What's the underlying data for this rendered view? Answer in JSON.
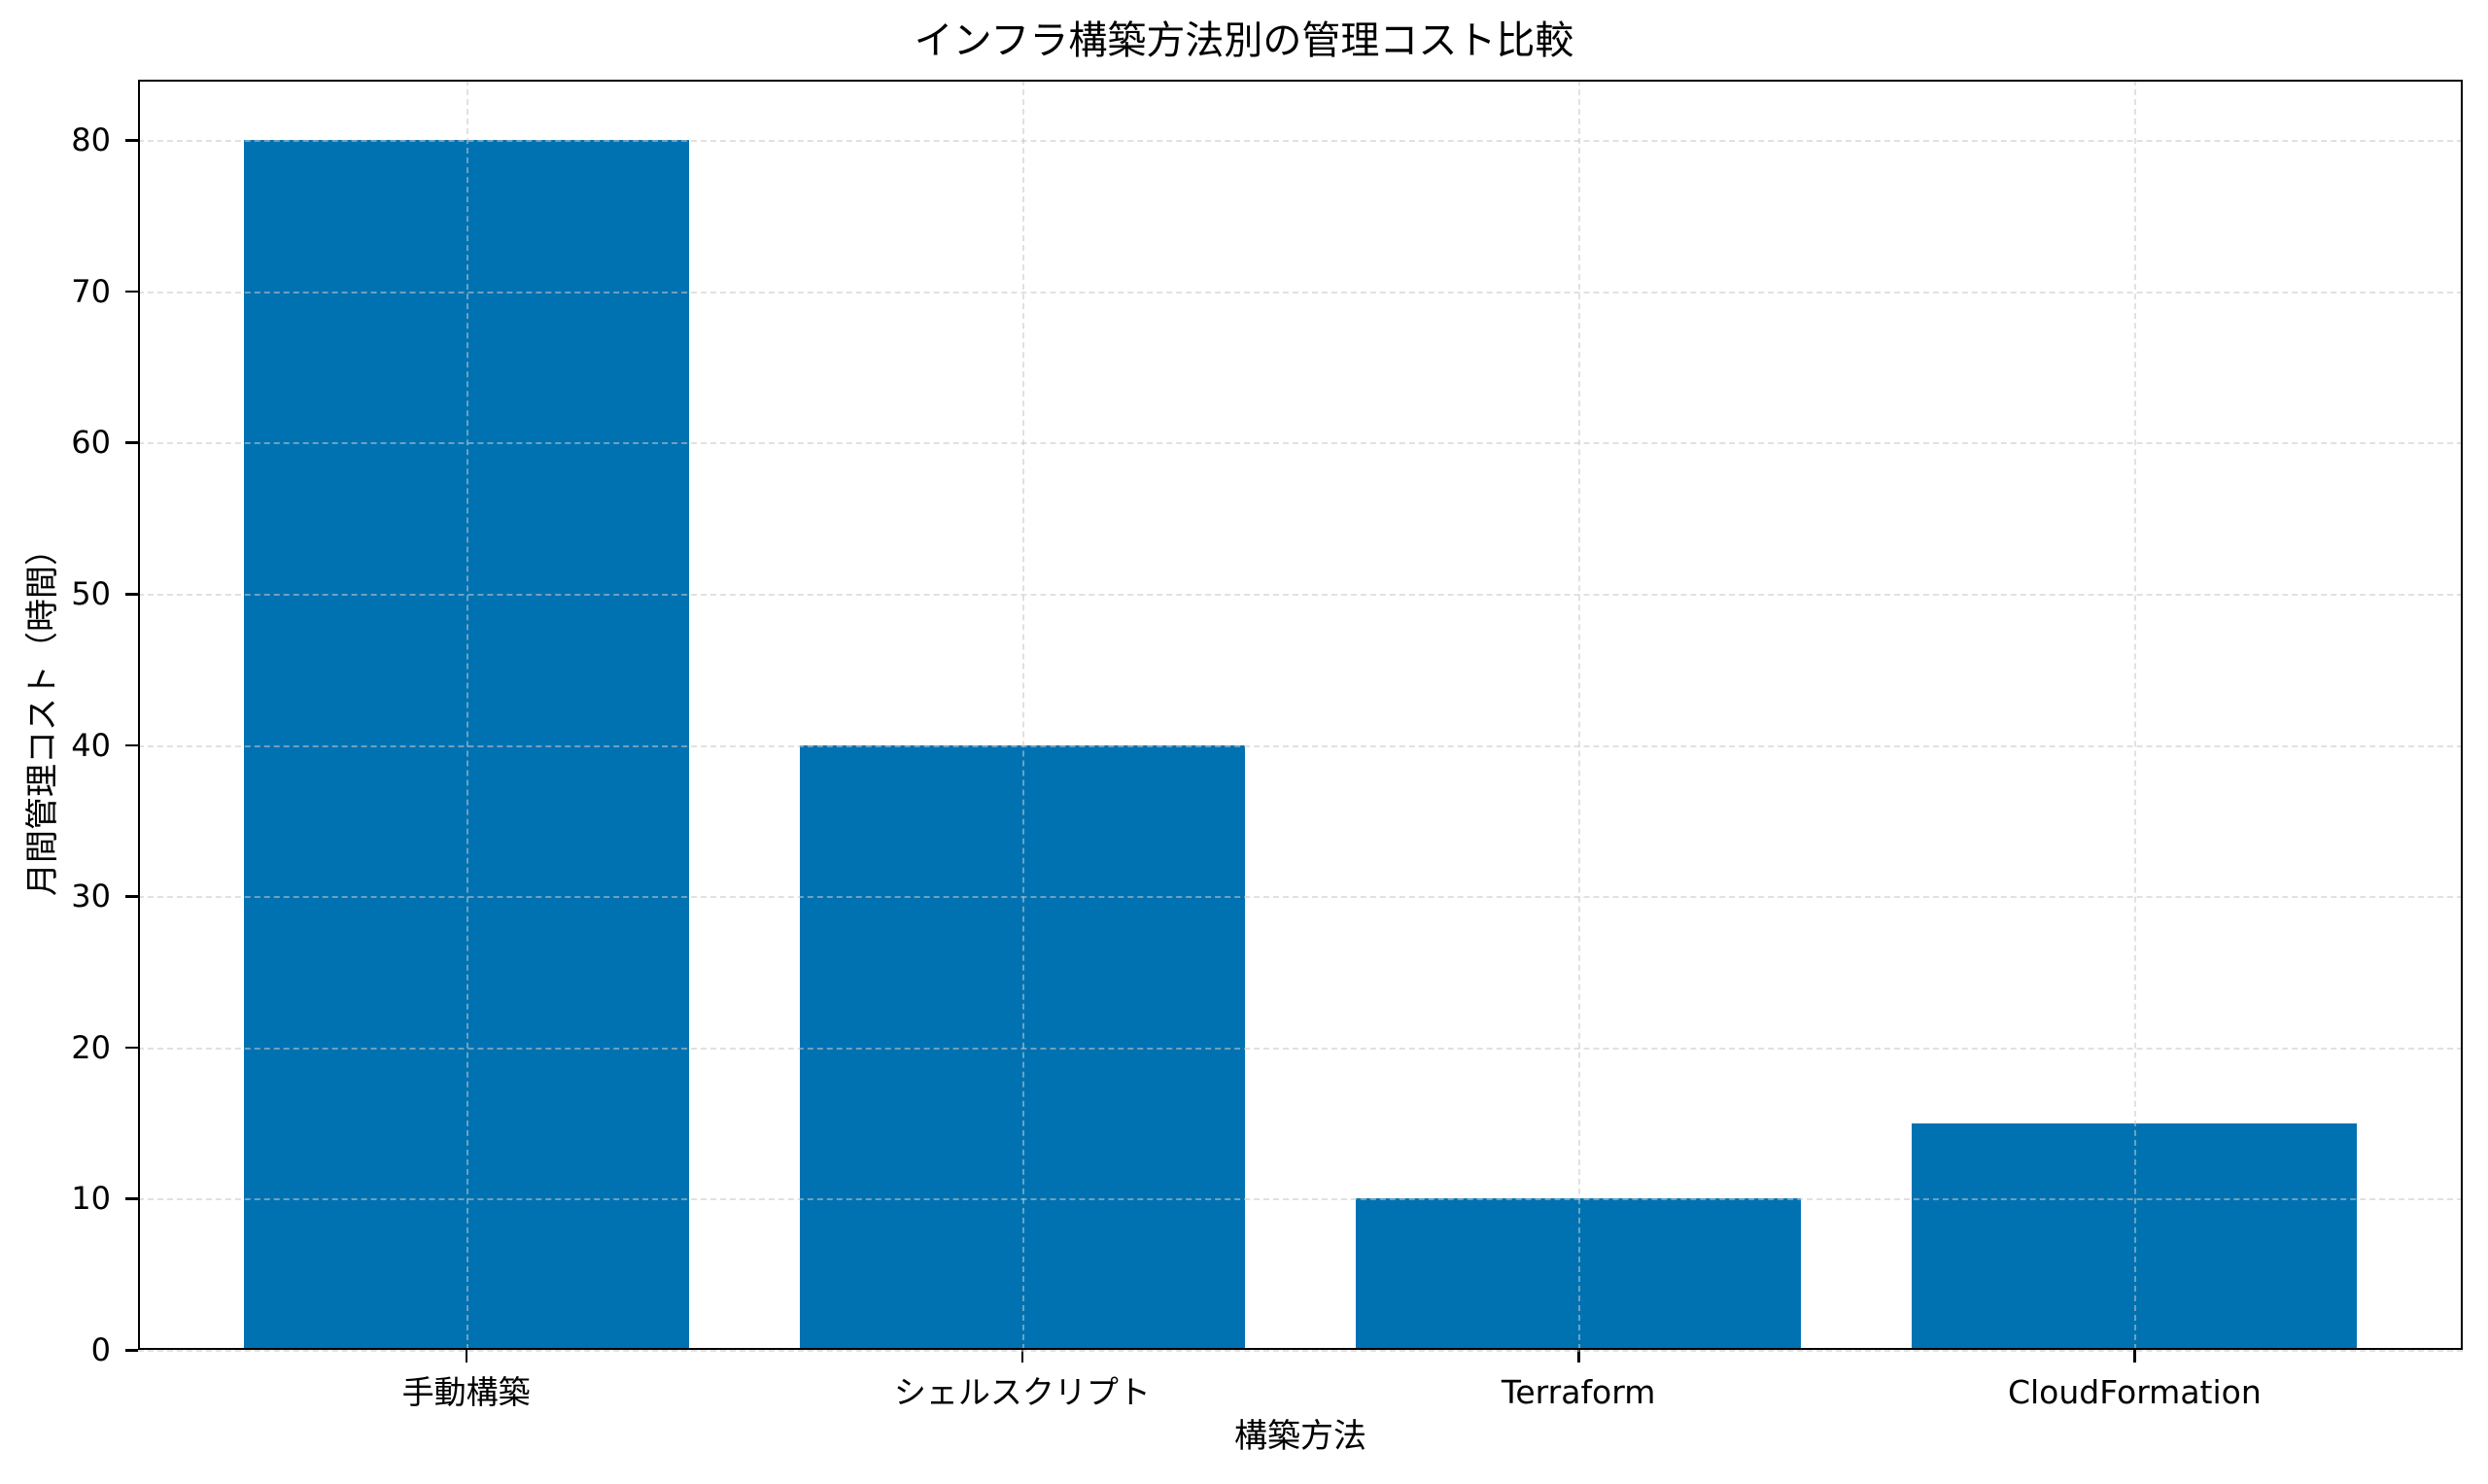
{
  "chart_data": {
    "type": "bar",
    "title": "インフラ構築方法別の管理コスト比較",
    "xlabel": "構築方法",
    "ylabel": "月間管理コスト（時間）",
    "categories": [
      "手動構築",
      "シェルスクリプト",
      "Terraform",
      "CloudFormation"
    ],
    "values": [
      80,
      40,
      10,
      15
    ],
    "ylim": [
      0,
      84
    ],
    "yticks": [
      0,
      10,
      20,
      30,
      40,
      50,
      60,
      70,
      80
    ],
    "grid": true,
    "legend": null,
    "bar_color": "#0072B2"
  },
  "labels": {
    "title": "インフラ構築方法別の管理コスト比較",
    "xlabel": "構築方法",
    "ylabel": "月間管理コスト（時間）",
    "yticks": [
      "0",
      "10",
      "20",
      "30",
      "40",
      "50",
      "60",
      "70",
      "80"
    ],
    "xticks": [
      "手動構築",
      "シェルスクリプト",
      "Terraform",
      "CloudFormation"
    ]
  }
}
